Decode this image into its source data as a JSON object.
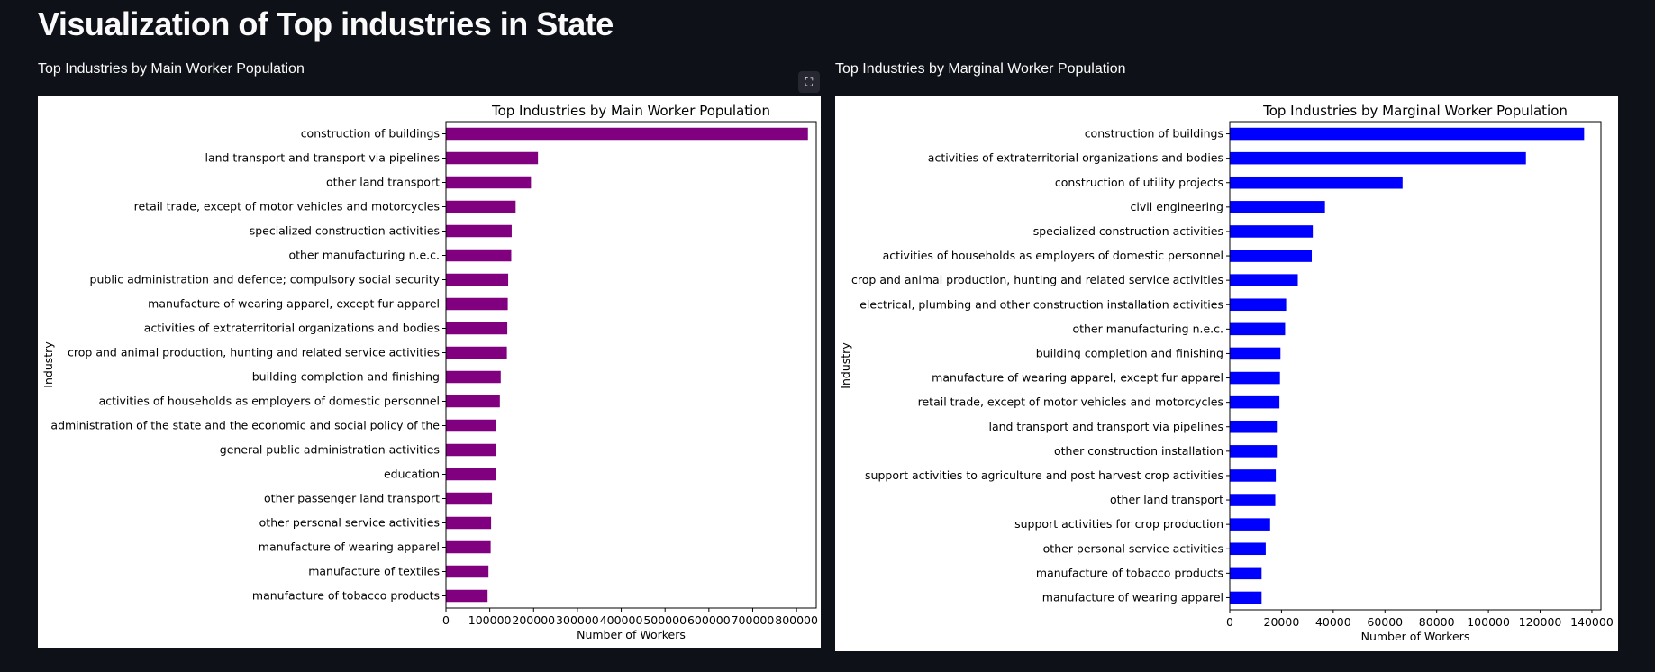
{
  "page": {
    "title": "Visualization of Top industries in State",
    "left_subheader": "Top Industries by Main Worker Population",
    "right_subheader": "Top Industries by Marginal Worker Population"
  },
  "chart_data": [
    {
      "type": "bar",
      "orientation": "horizontal",
      "title": "Top Industries by Main Worker Population",
      "xlabel": "Number of Workers",
      "ylabel": "Industry",
      "color": "#800080",
      "xlim": [
        0,
        845000
      ],
      "xticks": [
        0,
        100000,
        200000,
        300000,
        400000,
        500000,
        600000,
        700000,
        800000
      ],
      "xtick_labels": [
        "0",
        "100000",
        "200000",
        "300000",
        "400000",
        "500000",
        "600000",
        "700000",
        "800000"
      ],
      "categories": [
        "construction of buildings",
        "land transport and transport via pipelines",
        "other land transport",
        "retail trade, except of motor vehicles and motorcycles",
        "specialized construction activities",
        "other manufacturing n.e.c.",
        "public administration and defence; compulsory social security",
        "manufacture of wearing apparel, except fur apparel",
        "activities of extraterritorial organizations and bodies",
        "crop and animal production, hunting and related service activities",
        "building completion and finishing",
        "activities of households as employers of domestic personnel",
        "administration of the state and the economic and social policy of the",
        "general public administration activities",
        "education",
        "other passenger land transport",
        "other personal service activities",
        "manufacture of wearing apparel",
        "manufacture of textiles",
        "manufacture of tobacco products"
      ],
      "values": [
        826000,
        210000,
        194000,
        159000,
        150000,
        149000,
        142000,
        141000,
        140000,
        139000,
        125000,
        123000,
        114000,
        114000,
        114000,
        105000,
        103000,
        102000,
        97000,
        95000
      ]
    },
    {
      "type": "bar",
      "orientation": "horizontal",
      "title": "Top Industries by Marginal Worker Population",
      "xlabel": "Number of Workers",
      "ylabel": "Industry",
      "color": "#0000ff",
      "xlim": [
        0,
        143500
      ],
      "xticks": [
        0,
        20000,
        40000,
        60000,
        80000,
        100000,
        120000,
        140000
      ],
      "xtick_labels": [
        "0",
        "20000",
        "40000",
        "60000",
        "80000",
        "100000",
        "120000",
        "140000"
      ],
      "categories": [
        "construction of buildings",
        "activities of extraterritorial organizations and bodies",
        "construction of utility projects",
        "civil engineering",
        "specialized construction activities",
        "activities of households as employers of domestic personnel",
        "crop and animal production, hunting and related service activities",
        "electrical, plumbing and other construction installation activities",
        "other manufacturing n.e.c.",
        "building completion and finishing",
        "manufacture of wearing apparel, except fur apparel",
        "retail trade, except of motor vehicles and motorcycles",
        "land transport and transport via pipelines",
        "other construction installation",
        "support activities to agriculture and post harvest crop activities",
        "other land transport",
        "support activities for crop production",
        "other personal service activities",
        "manufacture of tobacco products",
        "manufacture of wearing apparel"
      ],
      "values": [
        137000,
        114500,
        66800,
        36800,
        32100,
        31700,
        26300,
        21800,
        21400,
        19600,
        19400,
        19200,
        18200,
        18200,
        17800,
        17600,
        15600,
        13900,
        12300,
        12300
      ]
    }
  ]
}
